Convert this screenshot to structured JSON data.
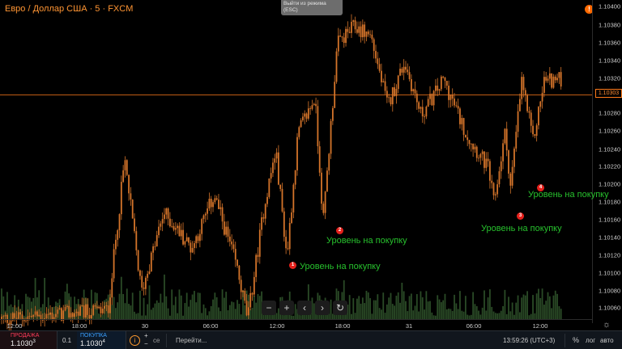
{
  "header": {
    "title": "Евро / Доллар США · 5 · FXCM"
  },
  "tooltip": {
    "line1": "Выйти из режима",
    "line2": "(ESC)"
  },
  "alert_icon": "alert-icon",
  "price_axis": {
    "ticks": [
      "1.10400",
      "1.10380",
      "1.10360",
      "1.10340",
      "1.10320",
      "1.10300",
      "1.10280",
      "1.10260",
      "1.10240",
      "1.10220",
      "1.10200",
      "1.10180",
      "1.10160",
      "1.10140",
      "1.10120",
      "1.10100",
      "1.10080",
      "1.10060"
    ],
    "current": "1.10303"
  },
  "time_axis": {
    "ticks": [
      "12:00",
      "18:00",
      "30",
      "06:00",
      "12:00",
      "18:00",
      "31",
      "06:00",
      "12:00"
    ]
  },
  "chart_data": {
    "type": "candlestick",
    "symbol": "EURUSD",
    "timeframe": "5",
    "ylim": [
      1.1005,
      1.1041
    ],
    "current_price": 1.10303,
    "price_path": [
      [
        0.0,
        1.1005
      ],
      [
        0.19,
        1.1006
      ],
      [
        0.22,
        1.1023
      ],
      [
        0.25,
        1.1008
      ],
      [
        0.29,
        1.1017
      ],
      [
        0.34,
        1.1013
      ],
      [
        0.38,
        1.1019
      ],
      [
        0.42,
        1.1011
      ],
      [
        0.44,
        1.1005
      ],
      [
        0.47,
        1.1018
      ],
      [
        0.49,
        1.1024
      ],
      [
        0.51,
        1.1012
      ],
      [
        0.53,
        1.1026
      ],
      [
        0.56,
        1.103
      ],
      [
        0.575,
        1.1016
      ],
      [
        0.6,
        1.1036
      ],
      [
        0.63,
        1.1038
      ],
      [
        0.66,
        1.1037
      ],
      [
        0.69,
        1.1029
      ],
      [
        0.72,
        1.1034
      ],
      [
        0.75,
        1.1028
      ],
      [
        0.79,
        1.1032
      ],
      [
        0.83,
        1.1026
      ],
      [
        0.87,
        1.1022
      ],
      [
        0.88,
        1.1018
      ],
      [
        0.9,
        1.1026
      ],
      [
        0.91,
        1.102
      ],
      [
        0.93,
        1.1032
      ],
      [
        0.95,
        1.1025
      ],
      [
        0.97,
        1.1032
      ]
    ],
    "volume_note": "volume histogram at bottom"
  },
  "annotations": [
    {
      "num": "1",
      "text": "Уровень на покупку"
    },
    {
      "num": "2",
      "text": "Уровень на покупку"
    },
    {
      "num": "3",
      "text": "Уровень на покупку"
    },
    {
      "num": "4",
      "text": "Уровень на покупку"
    }
  ],
  "controls": [
    "−",
    "+",
    "‹",
    "›",
    "↻"
  ],
  "bottom_bar": {
    "sell_label": "ПРОДАЖА",
    "sell_price": "1.1030",
    "sell_sup": "3",
    "qty": "0.1",
    "buy_label": "ПОКУПКА",
    "buy_price": "1.1030",
    "buy_sup": "4",
    "info": "i",
    "plus": "+",
    "minus": "−",
    "se_text": "се",
    "goto": "Перейти...",
    "clock": "13:59:26 (UTC+3)",
    "percent": "%",
    "log": "лог",
    "auto": "авто"
  },
  "colors": {
    "candle": "#d4742a",
    "volume": "#2a4a26",
    "current_line": "#ff7a1a",
    "annotation_text": "#27c12d",
    "marker": "#e5201b"
  }
}
